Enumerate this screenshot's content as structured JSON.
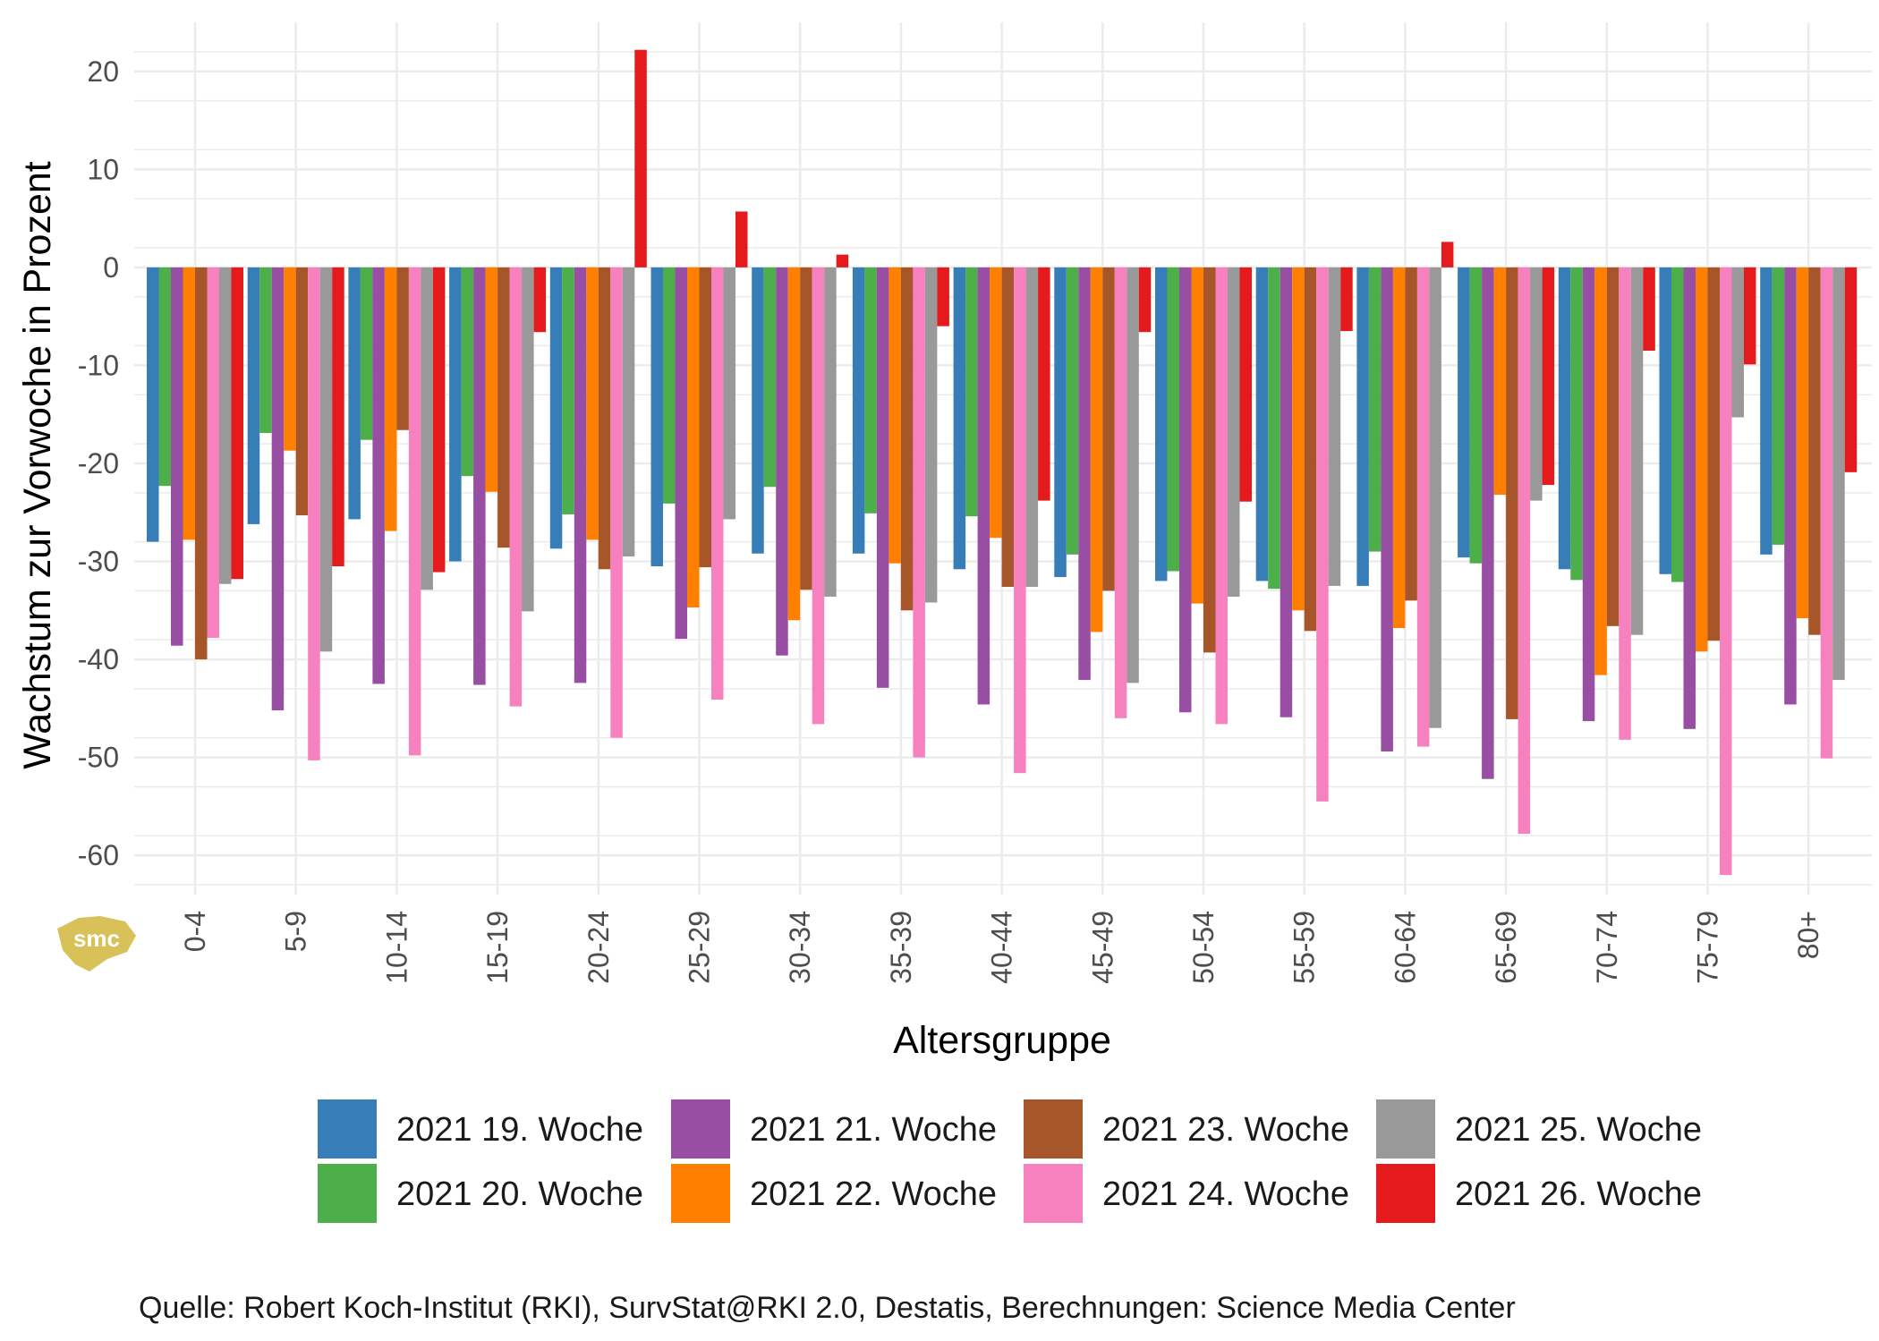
{
  "chart_data": {
    "type": "bar",
    "title": "",
    "xlabel": "Altersgruppe",
    "ylabel": "Wachstum zur Vorwoche in Prozent",
    "ylim": [
      -64,
      25
    ],
    "yticks": [
      20,
      10,
      0,
      -10,
      -20,
      -30,
      -40,
      -50,
      -60
    ],
    "yticklabels": [
      "20",
      "10",
      "0",
      "-10",
      "-20",
      "-30",
      "-40",
      "-50",
      "-60"
    ],
    "categories": [
      "0-4",
      "5-9",
      "10-14",
      "15-19",
      "20-24",
      "25-29",
      "30-34",
      "35-39",
      "40-44",
      "45-49",
      "50-54",
      "55-59",
      "60-64",
      "65-69",
      "70-74",
      "75-79",
      "80+"
    ],
    "series": [
      {
        "name": "2021 19. Woche",
        "color": "#377EB8",
        "values": [
          -28,
          -26.2,
          -25.7,
          -30,
          -28.7,
          -30.5,
          -29.2,
          -29.2,
          -30.8,
          -31.6,
          -32,
          -32,
          -32.5,
          -29.6,
          -30.8,
          -31.3,
          -29.3
        ]
      },
      {
        "name": "2021 20. Woche",
        "color": "#4DAF4A",
        "values": [
          -22.3,
          -16.9,
          -17.6,
          -21.3,
          -25.2,
          -24.1,
          -22.4,
          -25.1,
          -25.4,
          -29.3,
          -31,
          -32.8,
          -29,
          -30.2,
          -31.9,
          -32.1,
          -28.3
        ]
      },
      {
        "name": "2021 21. Woche",
        "color": "#984EA3",
        "values": [
          -38.6,
          -45.2,
          -42.5,
          -42.6,
          -42.4,
          -37.9,
          -39.6,
          -42.9,
          -44.6,
          -42.1,
          -45.4,
          -45.9,
          -49.4,
          -52.2,
          -46.3,
          -47.1,
          -44.6
        ]
      },
      {
        "name": "2021 22. Woche",
        "color": "#FF7F00",
        "values": [
          -27.8,
          -18.7,
          -26.9,
          -22.9,
          -27.8,
          -34.7,
          -36,
          -30.2,
          -27.6,
          -37.2,
          -34.3,
          -35,
          -36.8,
          -23.2,
          -41.6,
          -39.2,
          -35.8
        ]
      },
      {
        "name": "2021 23. Woche",
        "color": "#A65628",
        "values": [
          -40,
          -25.3,
          -16.6,
          -28.6,
          -30.8,
          -30.6,
          -32.9,
          -35,
          -32.6,
          -33,
          -39.3,
          -37.1,
          -34,
          -46.1,
          -36.6,
          -38.1,
          -37.5
        ]
      },
      {
        "name": "2021 24. Woche",
        "color": "#F781BF",
        "values": [
          -37.8,
          -50.3,
          -49.8,
          -44.8,
          -48,
          -44.1,
          -46.6,
          -50,
          -51.6,
          -46,
          -46.6,
          -54.5,
          -48.9,
          -57.8,
          -48.2,
          -62,
          -50.1
        ]
      },
      {
        "name": "2021 25. Woche",
        "color": "#999999",
        "values": [
          -32.3,
          -39.2,
          -32.9,
          -35.1,
          -29.5,
          -25.7,
          -33.6,
          -34.2,
          -32.6,
          -42.4,
          -33.6,
          -32.5,
          -47,
          -23.8,
          -37.5,
          -15.3,
          -42.1
        ]
      },
      {
        "name": "2021 26. Woche",
        "color": "#E41A1C",
        "values": [
          -31.8,
          -30.5,
          -31.1,
          -6.6,
          22.2,
          5.7,
          1.3,
          -6,
          -23.8,
          -6.6,
          -23.9,
          -6.5,
          2.6,
          -22.2,
          -8.5,
          -9.9,
          -20.9
        ]
      }
    ],
    "legend": {
      "placement": "bottom",
      "columns": 4
    }
  },
  "caption": "Quelle: Robert Koch-Institut (RKI), SurvStat@RKI 2.0, Destatis, Berechnungen: Science Media Center",
  "logo_text": "smc",
  "colors": {
    "grid": "#EBEBEB",
    "logo": "#D9C15A"
  }
}
